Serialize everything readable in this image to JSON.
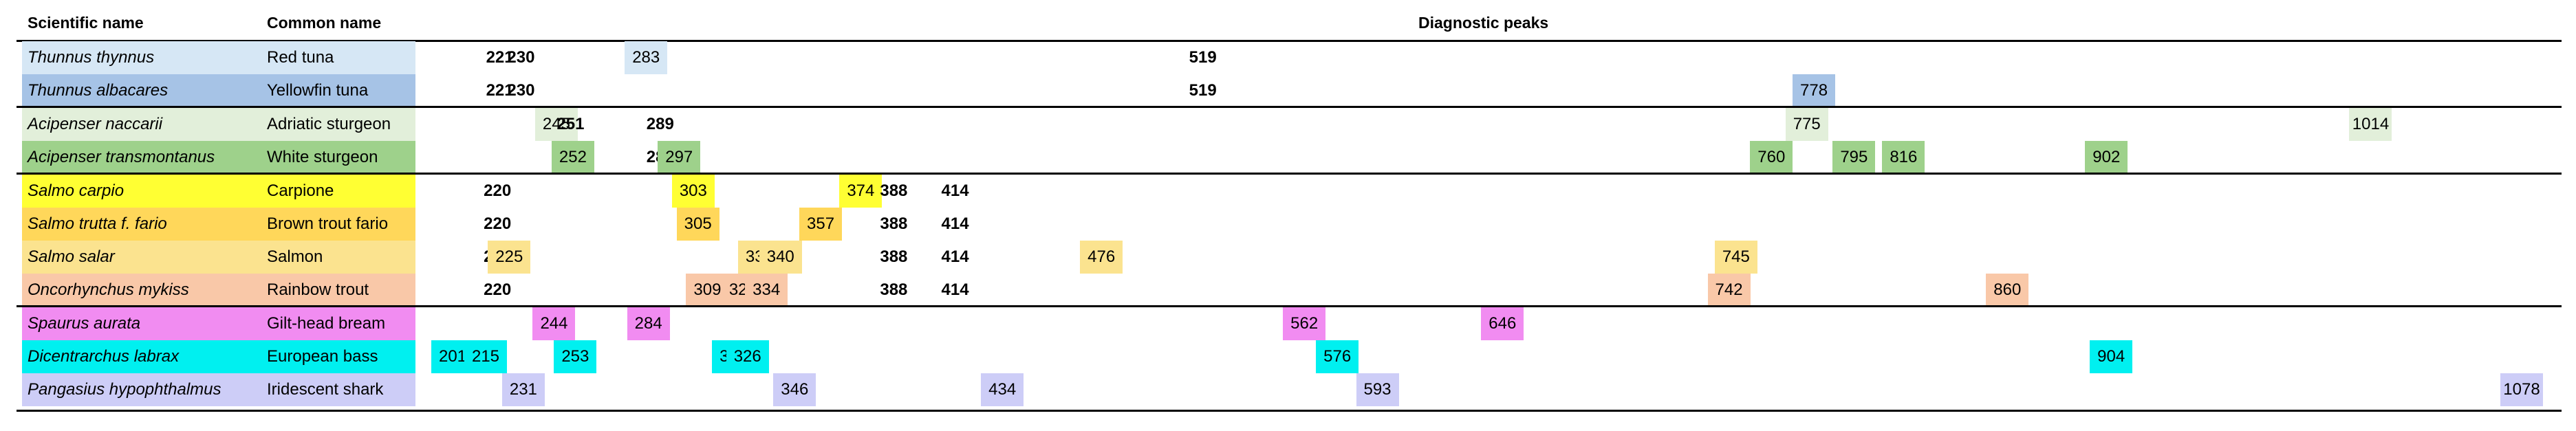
{
  "headers": {
    "scientific": "Scientific name",
    "common": "Common name",
    "peaks": "Diagnostic peaks"
  },
  "axis": {
    "min": 201,
    "max": 1078
  },
  "groups": [
    {
      "rows": [
        {
          "scientific": "Thunnus thynnus",
          "common": "Red tuna",
          "color": "#d6e7f5",
          "peaks": [
            {
              "v": "221",
              "bold": true
            },
            {
              "v": "230",
              "bold": true
            },
            {
              "v": "283",
              "hl": true
            },
            {
              "v": "519",
              "bold": true
            }
          ]
        },
        {
          "scientific": "Thunnus albacares",
          "common": "Yellowfin tuna",
          "color": "#a6c3e6",
          "peaks": [
            {
              "v": "221",
              "bold": true
            },
            {
              "v": "230",
              "bold": true
            },
            {
              "v": "519",
              "bold": true
            },
            {
              "v": "778",
              "hl": true
            }
          ]
        }
      ]
    },
    {
      "rows": [
        {
          "scientific": "Acipenser naccarii",
          "common": "Adriatic sturgeon",
          "color": "#e2efda",
          "peaks": [
            {
              "v": "245",
              "hl": true
            },
            {
              "v": "251",
              "bold": true
            },
            {
              "v": "289",
              "bold": true
            },
            {
              "v": "775",
              "hl": true
            },
            {
              "v": "1014",
              "hl": true
            }
          ]
        },
        {
          "scientific": "Acipenser transmontanus",
          "common": "White sturgeon",
          "color": "#9ed18b",
          "peaks": [
            {
              "v": "251",
              "bold": true
            },
            {
              "v": "252",
              "hl": true
            },
            {
              "v": "289",
              "bold": true
            },
            {
              "v": "297",
              "hl": true
            },
            {
              "v": "760",
              "hl": true
            },
            {
              "v": "795",
              "hl": true
            },
            {
              "v": "816",
              "hl": true
            },
            {
              "v": "902",
              "hl": true
            }
          ]
        }
      ]
    },
    {
      "rows": [
        {
          "scientific": "Salmo carpio",
          "common": "Carpione",
          "color": "#ffff33",
          "peaks": [
            {
              "v": "220",
              "bold": true
            },
            {
              "v": "303",
              "hl": true
            },
            {
              "v": "374",
              "hl": true
            },
            {
              "v": "388",
              "bold": true
            },
            {
              "v": "414",
              "bold": true
            }
          ]
        },
        {
          "scientific": "Salmo trutta  f. fario",
          "common": "Brown trout fario",
          "color": "#ffd75a",
          "peaks": [
            {
              "v": "220",
              "bold": true
            },
            {
              "v": "305",
              "hl": true
            },
            {
              "v": "357",
              "hl": true
            },
            {
              "v": "388",
              "bold": true
            },
            {
              "v": "414",
              "bold": true
            }
          ]
        },
        {
          "scientific": "Salmo salar",
          "common": "Salmon",
          "color": "#fbe38f",
          "peaks": [
            {
              "v": "220",
              "bold": true
            },
            {
              "v": "225",
              "hl": true
            },
            {
              "v": "331",
              "hl": true
            },
            {
              "v": "340",
              "hl": true
            },
            {
              "v": "388",
              "bold": true
            },
            {
              "v": "414",
              "bold": true
            },
            {
              "v": "476",
              "hl": true
            },
            {
              "v": "745",
              "hl": true
            }
          ]
        },
        {
          "scientific": "Oncorhynchus mykiss",
          "common": "Rainbow trout",
          "color": "#f9c8a8",
          "peaks": [
            {
              "v": "220",
              "bold": true
            },
            {
              "v": "309",
              "hl": true
            },
            {
              "v": "324",
              "hl": true
            },
            {
              "v": "334",
              "hl": true
            },
            {
              "v": "388",
              "bold": true
            },
            {
              "v": "414",
              "bold": true
            },
            {
              "v": "742",
              "hl": true
            },
            {
              "v": "860",
              "hl": true
            }
          ]
        }
      ]
    },
    {
      "rows": [
        {
          "scientific": "Spaurus aurata",
          "common": "Gilt-head bream",
          "color": "#f18cf1",
          "peaks": [
            {
              "v": "244",
              "hl": true
            },
            {
              "v": "284",
              "hl": true
            },
            {
              "v": "562",
              "hl": true
            },
            {
              "v": "646",
              "hl": true
            }
          ]
        },
        {
          "scientific": "Dicentrarchus labrax",
          "common": "European bass",
          "color": "#00f0f0",
          "peaks": [
            {
              "v": "201",
              "hl": true
            },
            {
              "v": "215",
              "hl": true
            },
            {
              "v": "253",
              "hl": true
            },
            {
              "v": "320",
              "hl": true
            },
            {
              "v": "326",
              "hl": true
            },
            {
              "v": "576",
              "hl": true
            },
            {
              "v": "904",
              "hl": true
            }
          ]
        },
        {
          "scientific": "Pangasius hypophthalmus",
          "common": "Iridescent shark",
          "color": "#cdcdf7",
          "peaks": [
            {
              "v": "231",
              "hl": true
            },
            {
              "v": "346",
              "hl": true
            },
            {
              "v": "434",
              "hl": true
            },
            {
              "v": "593",
              "hl": true
            },
            {
              "v": "1078",
              "hl": true
            }
          ]
        }
      ]
    }
  ]
}
